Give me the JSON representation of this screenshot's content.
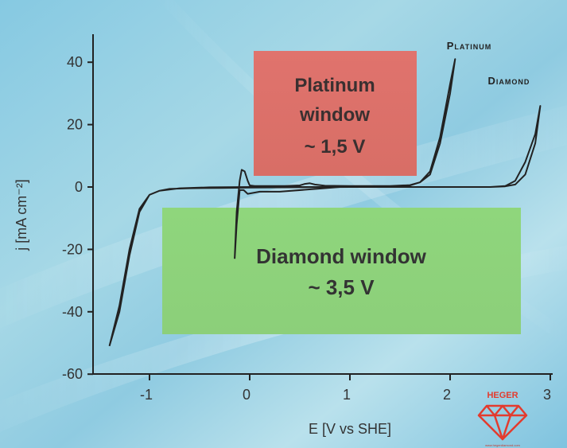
{
  "chart_data": {
    "type": "line",
    "title": "",
    "xlabel": "E [V vs SHE]",
    "ylabel": "j [mA cm⁻²]",
    "xlim": [
      -1.45,
      3.0
    ],
    "ylim": [
      -60,
      47
    ],
    "xticks": [
      {
        "value": -1,
        "label": "-1"
      },
      {
        "value": 0,
        "label": "0"
      },
      {
        "value": 1,
        "label": "1"
      },
      {
        "value": 2,
        "label": "2"
      },
      {
        "value": 3,
        "label": "3"
      }
    ],
    "yticks": [
      {
        "value": 40,
        "label": "40"
      },
      {
        "value": 20,
        "label": "20"
      },
      {
        "value": 0,
        "label": "0"
      },
      {
        "value": -20,
        "label": "-20"
      },
      {
        "value": -40,
        "label": "-40"
      },
      {
        "value": -60,
        "label": "-60"
      }
    ],
    "grid": false,
    "series": [
      {
        "name": "Platinum",
        "color": "#222222",
        "x": [
          -0.15,
          -0.13,
          -0.1,
          -0.08,
          -0.05,
          -0.02,
          0.0,
          0.05,
          0.15,
          0.35,
          0.5,
          0.55,
          0.6,
          0.65,
          0.75,
          1.0,
          1.4,
          1.6,
          1.7,
          1.8,
          1.9,
          2.0,
          2.05,
          2.0,
          1.9,
          1.8,
          1.7,
          1.6,
          1.5,
          1.2,
          0.9,
          0.7,
          0.3,
          0.1,
          -0.02,
          -0.06,
          -0.1,
          -0.13,
          -0.15
        ],
        "y": [
          -23,
          -8,
          2,
          5.5,
          5,
          2,
          0.5,
          0.3,
          0.3,
          0.3,
          0.5,
          1.0,
          1.2,
          0.8,
          0.4,
          0.3,
          0.3,
          0.6,
          1.5,
          4,
          14,
          30,
          41,
          33,
          16,
          5,
          1.5,
          0.5,
          0.2,
          0.0,
          0.0,
          -0.5,
          -1.5,
          -1.5,
          -2.2,
          -1.0,
          -1.0,
          -12,
          -23
        ]
      },
      {
        "name": "Diamond",
        "color": "#222222",
        "x": [
          -1.4,
          -1.3,
          -1.2,
          -1.1,
          -1.0,
          -0.9,
          -0.8,
          -0.6,
          -0.3,
          0.0,
          0.5,
          1.0,
          1.5,
          2.0,
          2.4,
          2.55,
          2.65,
          2.75,
          2.85,
          2.9,
          2.85,
          2.75,
          2.65,
          2.55,
          2.4,
          2.0,
          1.5,
          1.0,
          0.5,
          0.0,
          -0.4,
          -0.7,
          -0.9,
          -1.0,
          -1.1,
          -1.2,
          -1.3,
          -1.4
        ],
        "y": [
          -51,
          -38,
          -20,
          -7,
          -2.5,
          -1.2,
          -0.6,
          -0.4,
          -0.3,
          -0.2,
          -0.1,
          0.0,
          0.0,
          0.0,
          0.0,
          0.3,
          2,
          8,
          17,
          26,
          14,
          4,
          0.8,
          0.2,
          0.0,
          0.0,
          0.0,
          0.0,
          0.0,
          0.0,
          -0.1,
          -0.4,
          -1.2,
          -2.5,
          -8,
          -22,
          -40,
          -51
        ]
      }
    ],
    "annotations": {
      "platinum_curve_label": "Platinum",
      "diamond_curve_label": "Diamond",
      "platinum_window": [
        "Platinum",
        "window",
        "~ 1,5 V"
      ],
      "diamond_window": [
        "Diamond window",
        "~ 3,5 V"
      ]
    },
    "colors": {
      "platinum_box": "#d9706a",
      "diamond_box": "#8fd17a",
      "curve": "#222222",
      "axis": "#222222",
      "background": "#9fd3e6"
    }
  },
  "logo": {
    "text": "HEGER",
    "subtext": "www.hegerdiamond.com",
    "color": "#e33b2e"
  }
}
